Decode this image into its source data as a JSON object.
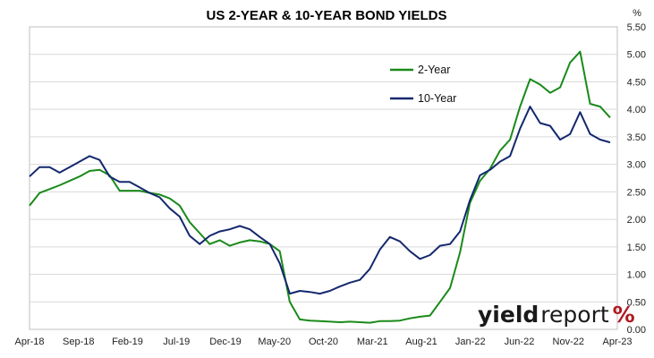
{
  "chart_data": {
    "type": "line",
    "title": "US 2-YEAR & 10-YEAR BOND YIELDS",
    "ylabel": "%",
    "xlabel": "",
    "ylim": [
      0,
      5.5
    ],
    "yticks": [
      "0.00",
      "0.50",
      "1.00",
      "1.50",
      "2.00",
      "2.50",
      "3.00",
      "3.50",
      "4.00",
      "4.50",
      "5.00",
      "5.50"
    ],
    "y_axis_position": "right",
    "x_tick_labels": [
      "Apr-18",
      "Sep-18",
      "Feb-19",
      "Jul-19",
      "Dec-19",
      "May-20",
      "Oct-20",
      "Mar-21",
      "Aug-21",
      "Jan-22",
      "Jun-22",
      "Nov-22",
      "Apr-23"
    ],
    "grid": "horizontal",
    "legend_position": "top-right",
    "series": [
      {
        "name": "2-Year",
        "color": "#1a8a1a",
        "values": [
          2.25,
          2.48,
          2.55,
          2.62,
          2.7,
          2.78,
          2.88,
          2.9,
          2.8,
          2.52,
          2.52,
          2.52,
          2.48,
          2.45,
          2.38,
          2.25,
          1.95,
          1.75,
          1.55,
          1.62,
          1.52,
          1.58,
          1.62,
          1.6,
          1.55,
          1.42,
          0.5,
          0.18,
          0.16,
          0.15,
          0.14,
          0.13,
          0.14,
          0.13,
          0.12,
          0.15,
          0.15,
          0.16,
          0.2,
          0.23,
          0.25,
          0.5,
          0.75,
          1.4,
          2.3,
          2.7,
          2.92,
          3.25,
          3.45,
          4.05,
          4.55,
          4.45,
          4.3,
          4.4,
          4.85,
          5.05,
          4.1,
          4.05,
          3.85
        ]
      },
      {
        "name": "10-Year",
        "color": "#14286e",
        "values": [
          2.78,
          2.95,
          2.95,
          2.85,
          2.95,
          3.05,
          3.15,
          3.08,
          2.78,
          2.68,
          2.68,
          2.58,
          2.48,
          2.4,
          2.2,
          2.05,
          1.7,
          1.55,
          1.7,
          1.78,
          1.82,
          1.88,
          1.82,
          1.68,
          1.55,
          1.2,
          0.65,
          0.7,
          0.68,
          0.65,
          0.7,
          0.78,
          0.85,
          0.9,
          1.1,
          1.45,
          1.68,
          1.6,
          1.42,
          1.28,
          1.35,
          1.52,
          1.55,
          1.78,
          2.35,
          2.8,
          2.9,
          3.05,
          3.15,
          3.65,
          4.05,
          3.75,
          3.7,
          3.45,
          3.55,
          3.95,
          3.55,
          3.45,
          3.4
        ]
      }
    ]
  },
  "logo": {
    "bold": "yield",
    "light": "report",
    "symbol": "%"
  }
}
